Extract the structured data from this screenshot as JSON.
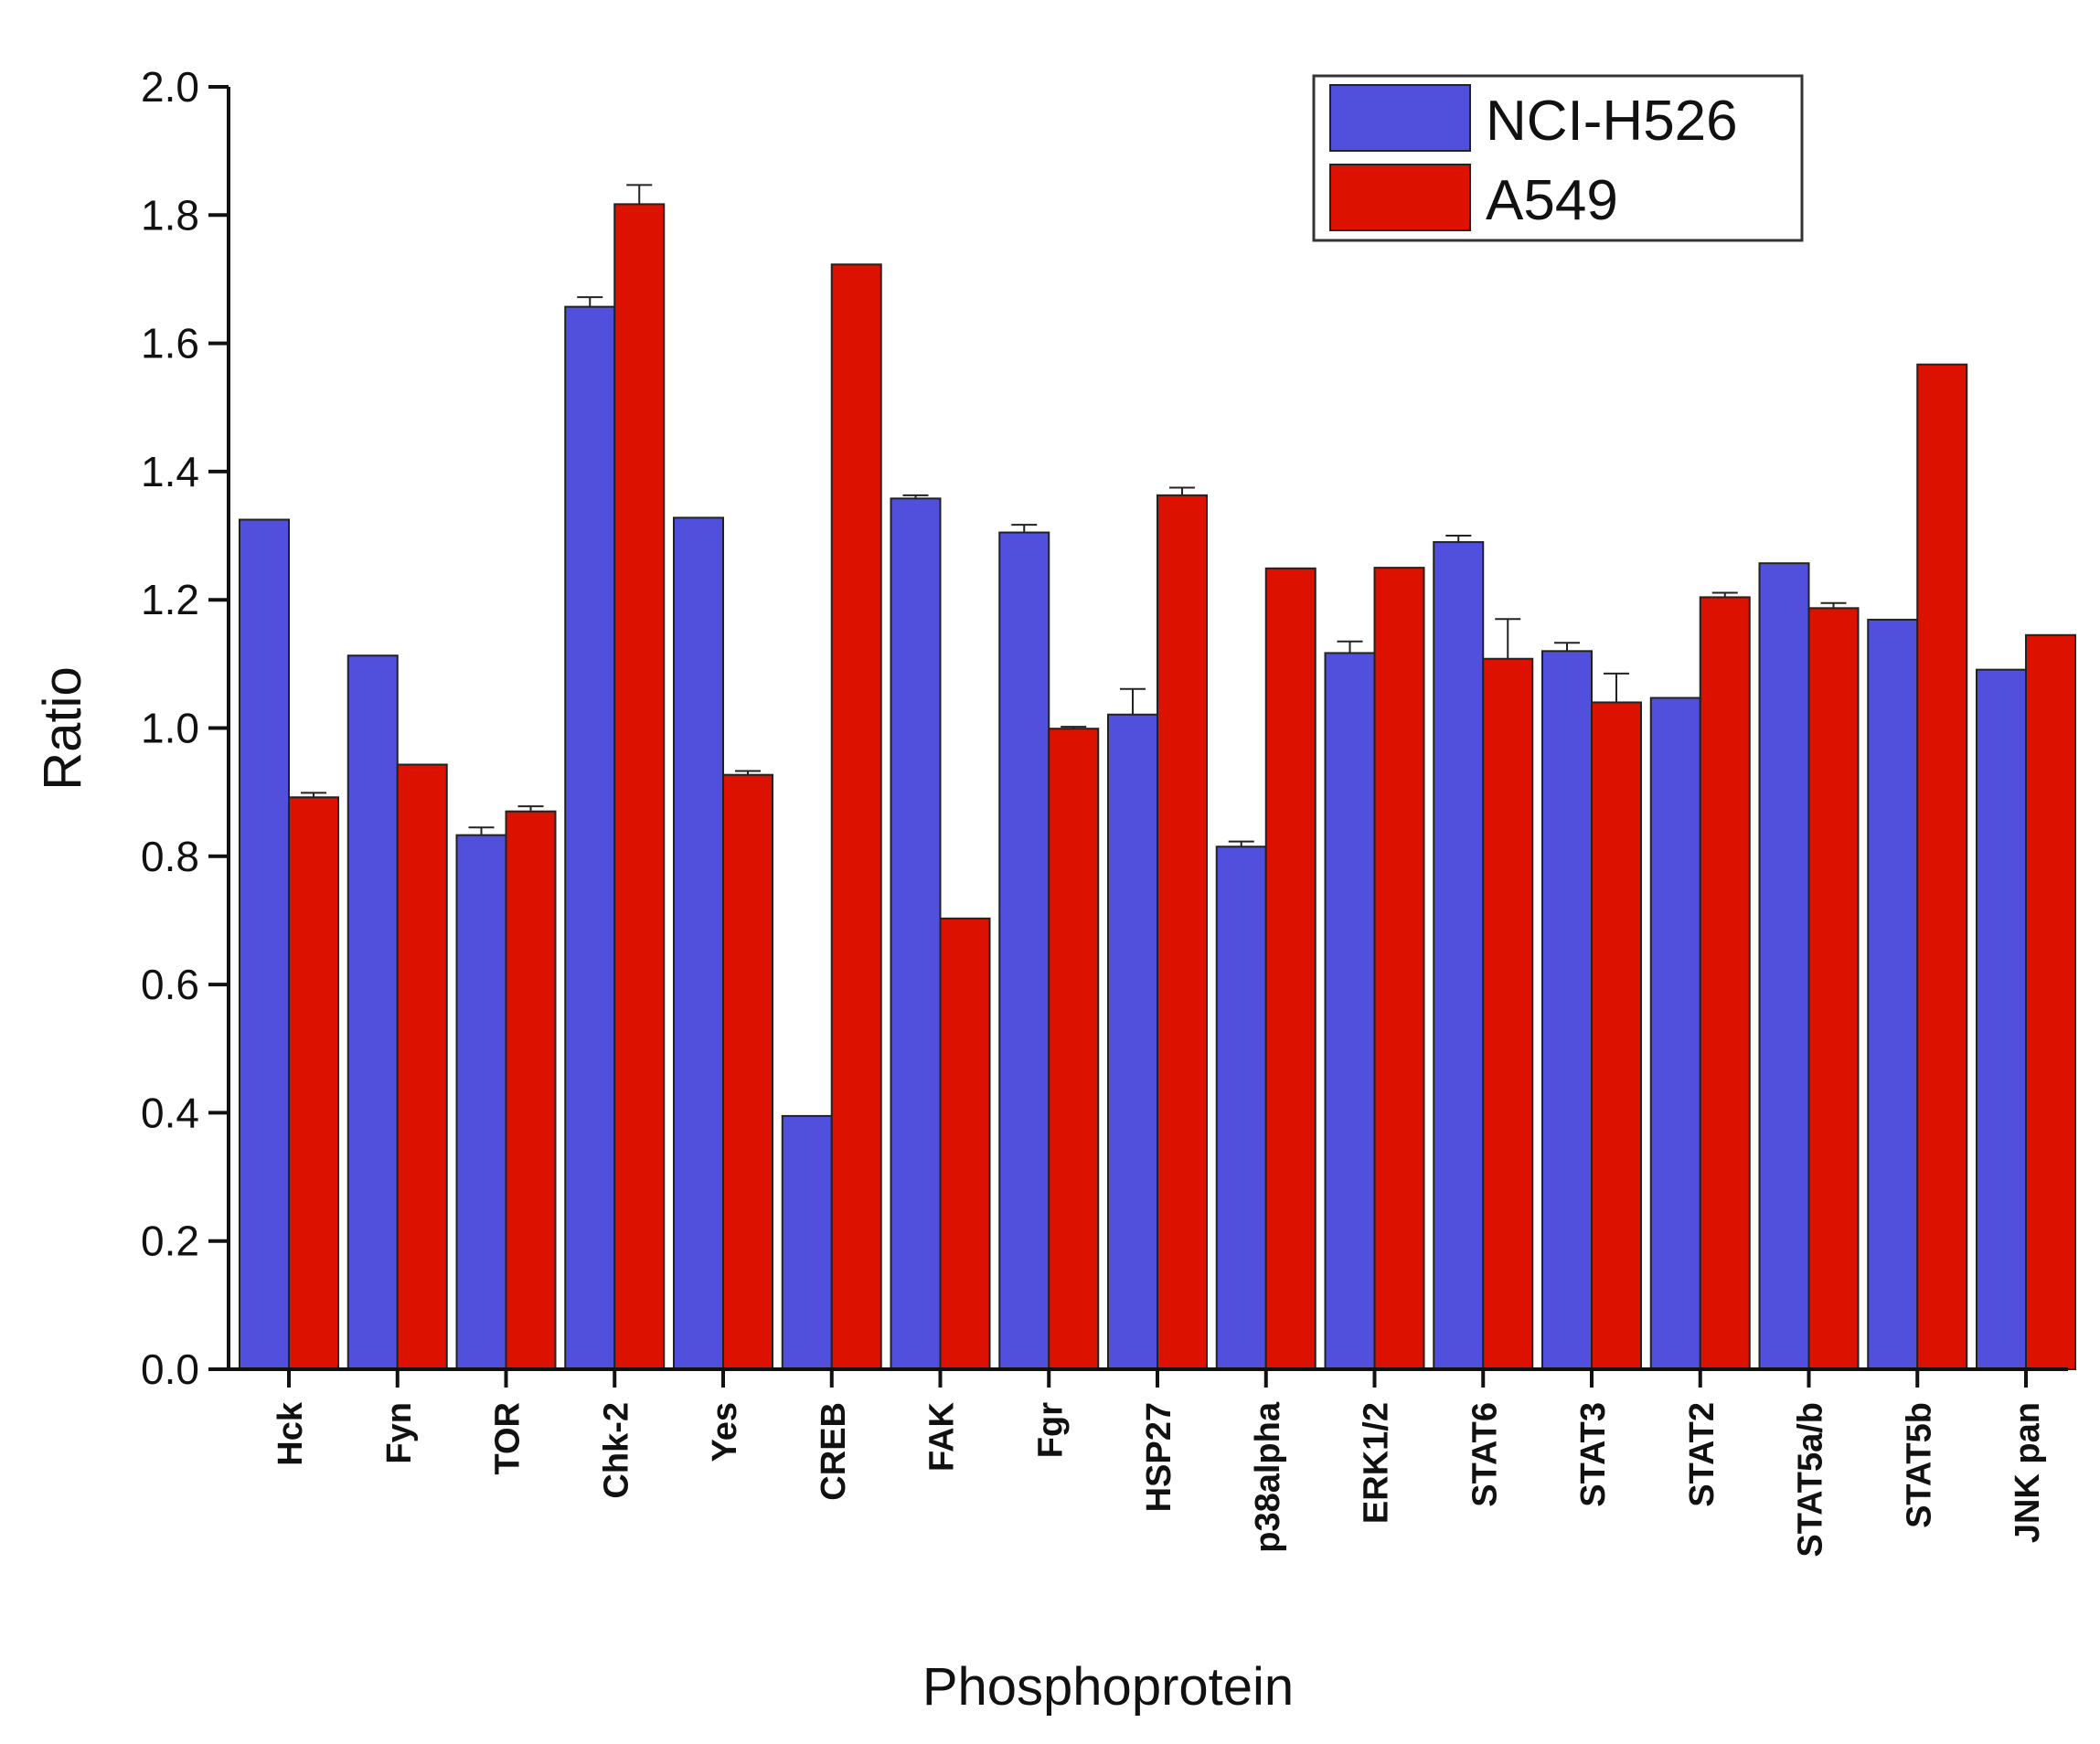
{
  "chart_data": {
    "type": "bar",
    "title": "",
    "xlabel": "Phosphoprotein",
    "ylabel": "Ratio",
    "ylim": [
      0,
      2.0
    ],
    "yticks": [
      "0.0",
      "0.2",
      "0.4",
      "0.6",
      "0.8",
      "1.0",
      "1.2",
      "1.4",
      "1.6",
      "1.8",
      "2.0"
    ],
    "legend_position": "top-right",
    "categories": [
      "Hck",
      "Fyn",
      "TOR",
      "Chk-2",
      "Yes",
      "CREB",
      "FAK",
      "Fgr",
      "HSP27",
      "p38alpha",
      "ERK1/2",
      "STAT6",
      "STAT3",
      "STAT2",
      "STAT5a/b",
      "STAT5b",
      "JNK pan"
    ],
    "series": [
      {
        "name": "NCI-H526",
        "color": "#5050dd",
        "values": [
          1.325,
          1.113,
          0.833,
          1.657,
          1.328,
          0.395,
          1.358,
          1.305,
          1.021,
          0.815,
          1.117,
          1.29,
          1.12,
          1.047,
          1.257,
          1.169,
          1.091
        ],
        "errors": [
          0,
          0,
          0.012,
          0.015,
          0,
          0,
          0.005,
          0.012,
          0.04,
          0.008,
          0.018,
          0.01,
          0.013,
          0,
          0,
          0,
          0
        ]
      },
      {
        "name": "A549",
        "color": "#dd1100",
        "values": [
          0.892,
          0.943,
          0.87,
          1.817,
          0.927,
          1.723,
          0.703,
          0.999,
          1.363,
          1.249,
          1.25,
          1.108,
          1.04,
          1.204,
          1.187,
          1.567,
          1.145
        ],
        "errors": [
          0.007,
          0,
          0.008,
          0.03,
          0.006,
          0,
          0,
          0.003,
          0.012,
          0,
          0,
          0.062,
          0.045,
          0.007,
          0.008,
          0,
          0
        ]
      }
    ]
  }
}
